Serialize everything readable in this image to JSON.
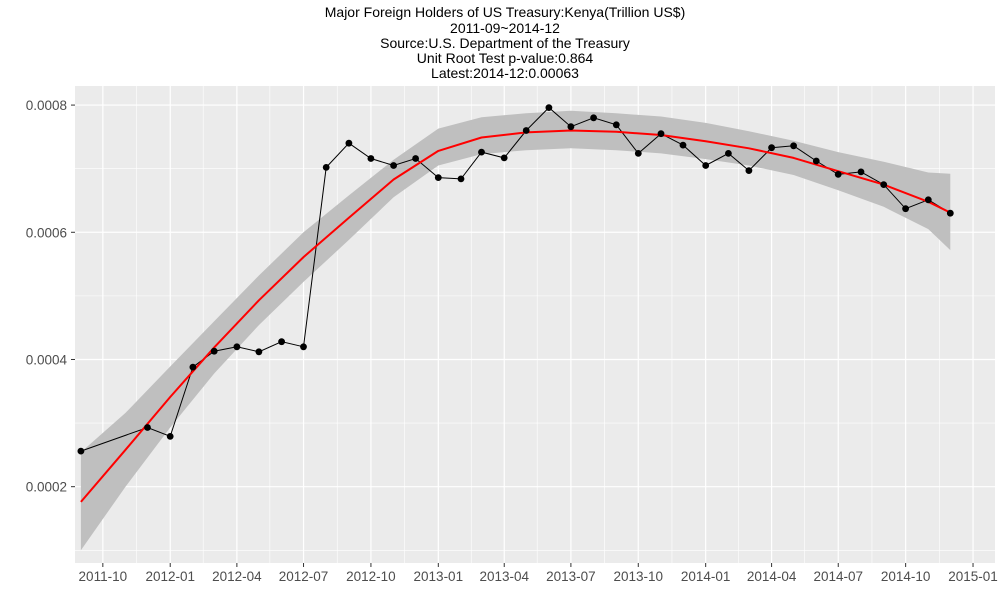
{
  "chart_data": {
    "type": "line",
    "title_lines": [
      "Major Foreign Holders of US Treasury:Kenya(Trillion US$)",
      "2011-09~2014-12",
      "Source:U.S. Department of the Treasury",
      "Unit Root Test p-value:0.864",
      "Latest:2014-12:0.00063"
    ],
    "xlabel": "",
    "ylabel": "",
    "x_ticks": [
      "2011-10",
      "2012-01",
      "2012-04",
      "2012-07",
      "2012-10",
      "2013-01",
      "2013-04",
      "2013-07",
      "2013-10",
      "2014-01",
      "2014-04",
      "2014-07",
      "2014-10",
      "2015-01"
    ],
    "y_ticks": [
      "0.0002",
      "0.0004",
      "0.0006",
      "0.0008"
    ],
    "xlim": [
      "2011-08-24",
      "2015-01-31"
    ],
    "ylim": [
      8e-05,
      0.00083
    ],
    "grid": true,
    "series": [
      {
        "style": "line-with-points",
        "color": "#000000",
        "x": [
          "2011-09-01",
          "2011-12-01",
          "2012-01-01",
          "2012-02-01",
          "2012-03-01",
          "2012-04-01",
          "2012-05-01",
          "2012-06-01",
          "2012-07-01",
          "2012-08-01",
          "2012-09-01",
          "2012-10-01",
          "2012-11-01",
          "2012-12-01",
          "2013-01-01",
          "2013-02-01",
          "2013-03-01",
          "2013-04-01",
          "2013-05-01",
          "2013-06-01",
          "2013-07-01",
          "2013-08-01",
          "2013-09-01",
          "2013-10-01",
          "2013-11-01",
          "2013-12-01",
          "2014-01-01",
          "2014-02-01",
          "2014-03-01",
          "2014-04-01",
          "2014-05-01",
          "2014-06-01",
          "2014-07-01",
          "2014-08-01",
          "2014-09-01",
          "2014-10-01",
          "2014-11-01",
          "2014-12-01"
        ],
        "values": [
          0.000256,
          0.000293,
          0.000279,
          0.000388,
          0.000413,
          0.00042,
          0.000412,
          0.000428,
          0.00042,
          0.000702,
          0.00074,
          0.000716,
          0.000705,
          0.000716,
          0.000686,
          0.000684,
          0.000726,
          0.000717,
          0.00076,
          0.000796,
          0.000766,
          0.00078,
          0.000769,
          0.000724,
          0.000755,
          0.000737,
          0.000705,
          0.000724,
          0.000697,
          0.000733,
          0.000736,
          0.000712,
          0.000691,
          0.000695,
          0.000675,
          0.000637,
          0.000651,
          0.00063
        ]
      },
      {
        "style": "smooth-fit",
        "color": "#ff0000",
        "x": [
          "2011-09-01",
          "2011-11-01",
          "2012-01-01",
          "2012-03-01",
          "2012-05-01",
          "2012-07-01",
          "2012-09-01",
          "2012-11-01",
          "2013-01-01",
          "2013-03-01",
          "2013-05-01",
          "2013-07-01",
          "2013-09-01",
          "2013-11-01",
          "2014-01-01",
          "2014-03-01",
          "2014-05-01",
          "2014-07-01",
          "2014-09-01",
          "2014-11-01",
          "2014-12-01"
        ],
        "values": [
          0.000176,
          0.000258,
          0.000341,
          0.000419,
          0.000493,
          0.000561,
          0.000623,
          0.000683,
          0.000728,
          0.000749,
          0.000757,
          0.00076,
          0.000758,
          0.000753,
          0.000743,
          0.000732,
          0.000717,
          0.000696,
          0.000675,
          0.000648,
          0.000631
        ],
        "band_lower": [
          0.0001,
          0.0002,
          0.000293,
          0.000378,
          0.000454,
          0.000522,
          0.000588,
          0.000655,
          0.000705,
          0.000723,
          0.000729,
          0.000732,
          0.000729,
          0.000724,
          0.000715,
          0.000705,
          0.00069,
          0.000666,
          0.00064,
          0.000605,
          0.000572
        ],
        "band_upper": [
          0.000254,
          0.000316,
          0.000389,
          0.00046,
          0.000532,
          0.0006,
          0.000658,
          0.000714,
          0.000763,
          0.000781,
          0.000787,
          0.000791,
          0.000787,
          0.000782,
          0.000772,
          0.000759,
          0.000744,
          0.000726,
          0.000711,
          0.000694,
          0.000692
        ],
        "band_color": "#bfbfbf"
      }
    ],
    "panel_color": "#ebebeb",
    "gridline_color": "#ffffff"
  }
}
